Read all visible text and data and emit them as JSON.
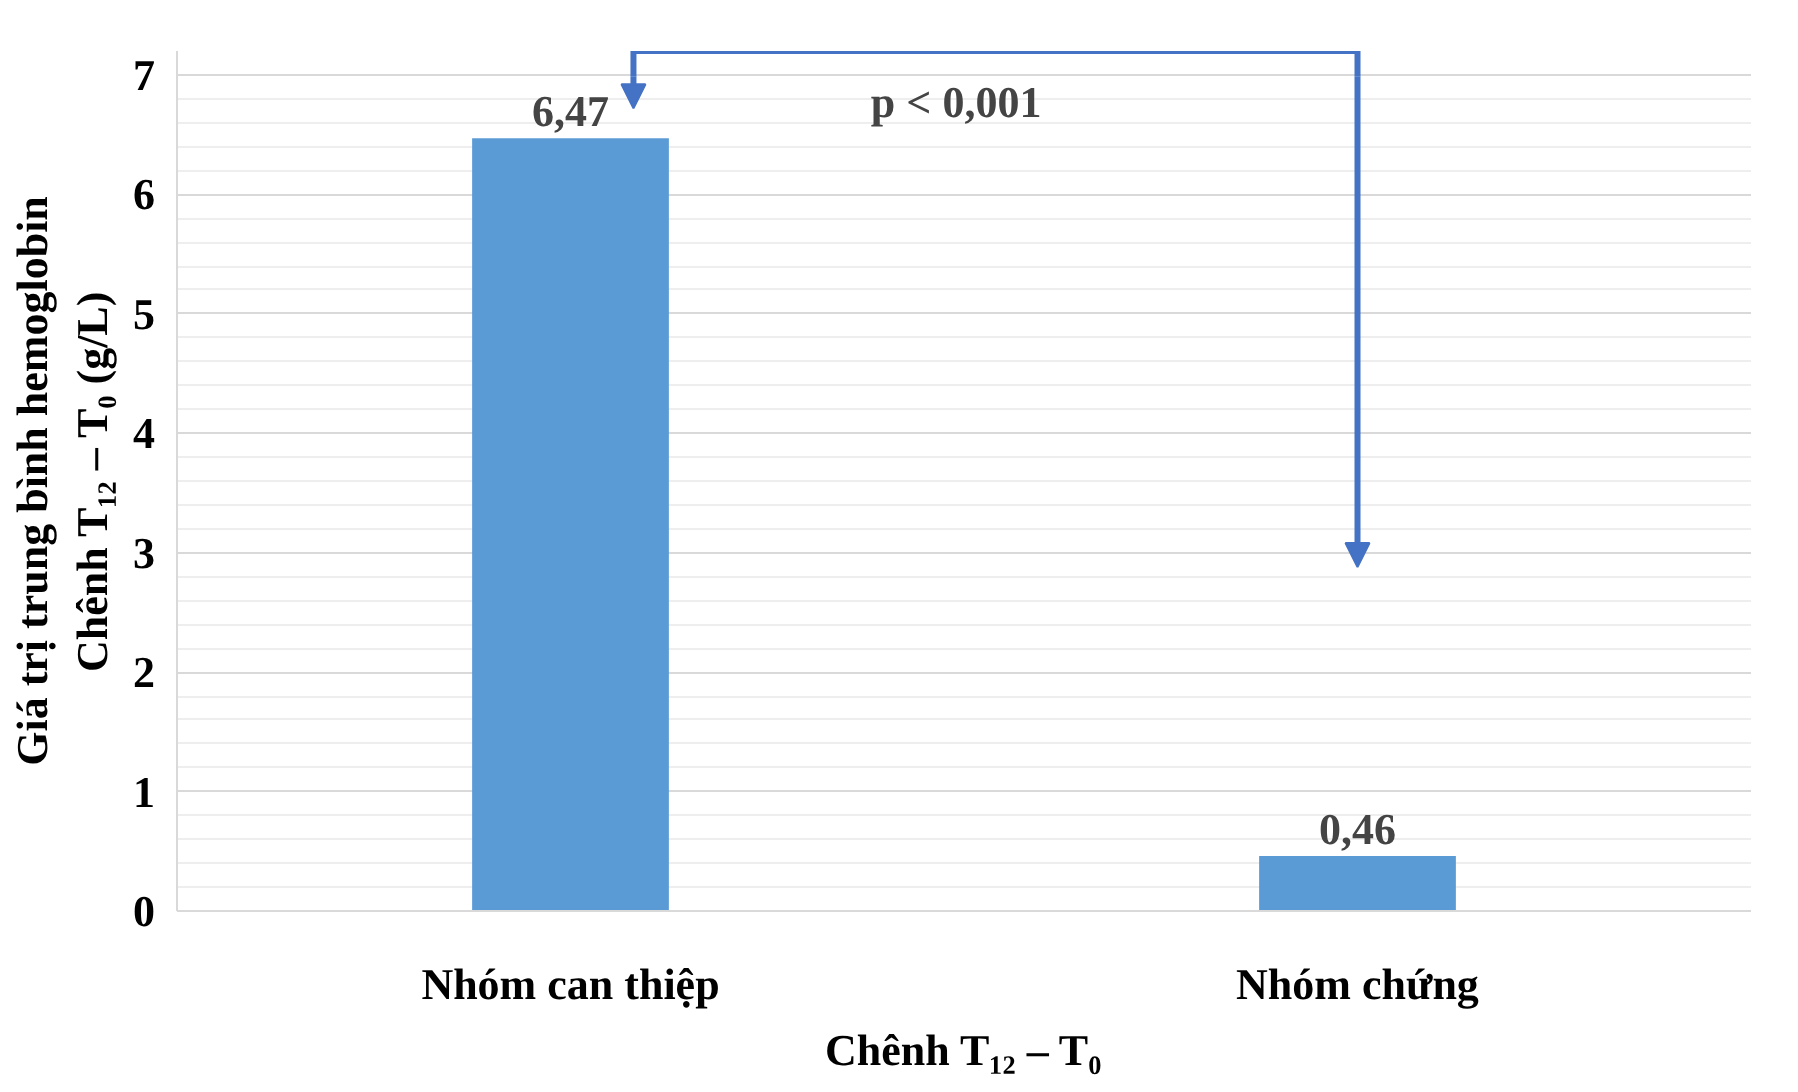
{
  "chart_data": {
    "type": "bar",
    "xlabel": "Chênh T₁₂ – T₀",
    "ylabel": "Giá trị trung bình hemoglobin\nChênh T₁₂ – T₀ (g/L)",
    "categories": [
      "Nhóm can thiệp",
      "Nhóm chứng"
    ],
    "values": [
      6.47,
      0.46
    ],
    "value_labels": [
      "6,47",
      "0,46"
    ],
    "color": "#5b9bd5",
    "ylim": [
      0,
      7.2
    ],
    "yticks": [
      0,
      1,
      2,
      3,
      4,
      5,
      6,
      7
    ],
    "grid": "y",
    "annotations": [
      "p < 0,001"
    ]
  }
}
